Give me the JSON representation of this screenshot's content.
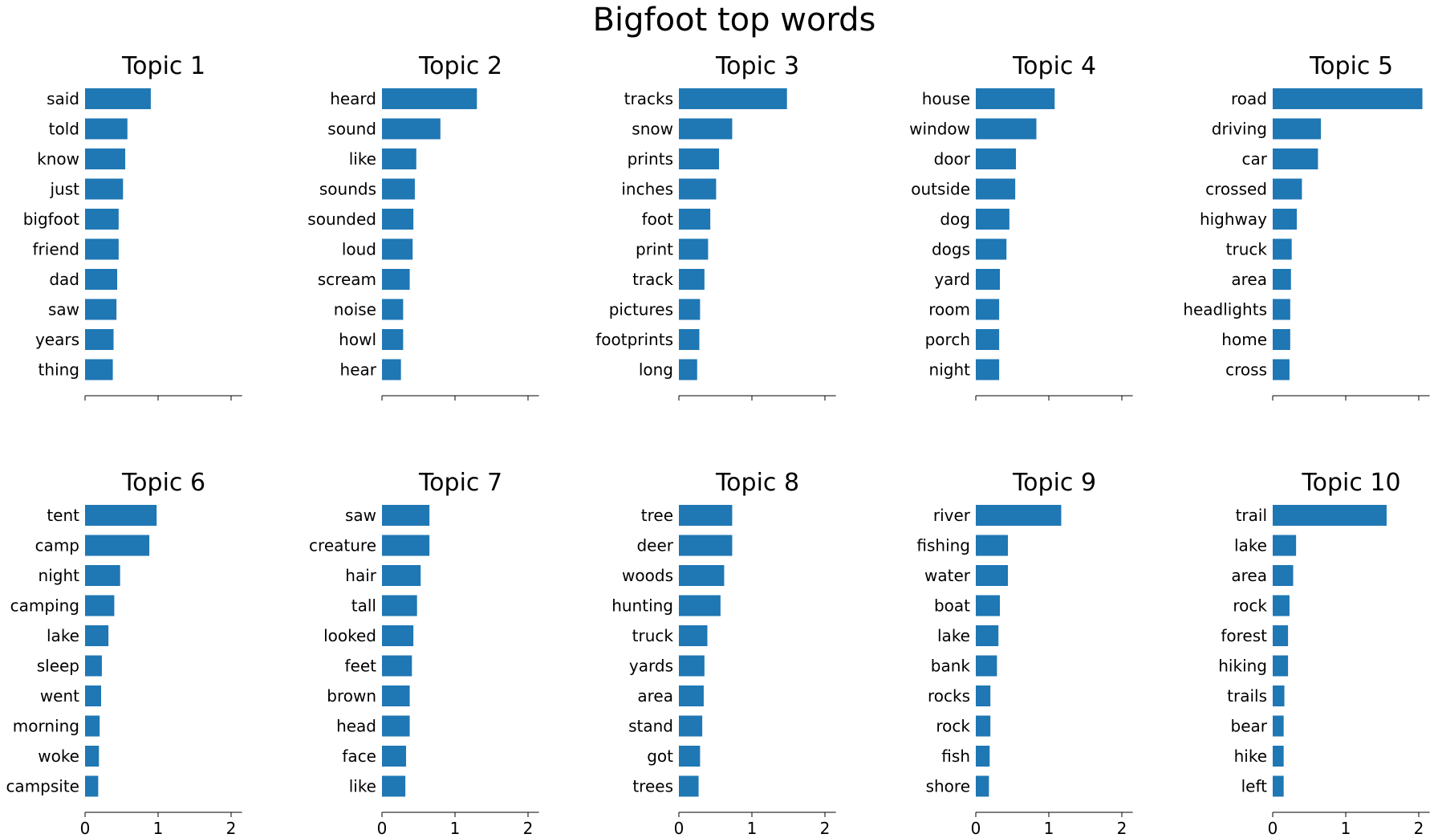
{
  "title": "Bigfoot top words",
  "chart_data": [
    {
      "type": "bar",
      "orientation": "horizontal",
      "title": "Topic 1",
      "categories": [
        "said",
        "told",
        "know",
        "just",
        "bigfoot",
        "friend",
        "dad",
        "saw",
        "years",
        "thing"
      ],
      "values": [
        0.9,
        0.58,
        0.55,
        0.52,
        0.46,
        0.46,
        0.44,
        0.43,
        0.39,
        0.38
      ],
      "xlim": [
        0,
        2.15
      ],
      "xticks": [
        "0",
        "1",
        "2"
      ],
      "show_tick_labels": false
    },
    {
      "type": "bar",
      "orientation": "horizontal",
      "title": "Topic 2",
      "categories": [
        "heard",
        "sound",
        "like",
        "sounds",
        "sounded",
        "loud",
        "scream",
        "noise",
        "howl",
        "hear"
      ],
      "values": [
        1.3,
        0.8,
        0.47,
        0.45,
        0.43,
        0.42,
        0.38,
        0.29,
        0.29,
        0.26
      ],
      "xlim": [
        0,
        2.15
      ],
      "xticks": [
        "0",
        "1",
        "2"
      ],
      "show_tick_labels": false
    },
    {
      "type": "bar",
      "orientation": "horizontal",
      "title": "Topic 3",
      "categories": [
        "tracks",
        "snow",
        "prints",
        "inches",
        "foot",
        "print",
        "track",
        "pictures",
        "footprints",
        "long"
      ],
      "values": [
        1.48,
        0.73,
        0.55,
        0.51,
        0.43,
        0.4,
        0.35,
        0.29,
        0.28,
        0.25
      ],
      "xlim": [
        0,
        2.15
      ],
      "xticks": [
        "0",
        "1",
        "2"
      ],
      "show_tick_labels": false
    },
    {
      "type": "bar",
      "orientation": "horizontal",
      "title": "Topic 4",
      "categories": [
        "house",
        "window",
        "door",
        "outside",
        "dog",
        "dogs",
        "yard",
        "room",
        "porch",
        "night"
      ],
      "values": [
        1.08,
        0.83,
        0.55,
        0.54,
        0.46,
        0.42,
        0.33,
        0.32,
        0.32,
        0.32
      ],
      "xlim": [
        0,
        2.15
      ],
      "xticks": [
        "0",
        "1",
        "2"
      ],
      "show_tick_labels": false
    },
    {
      "type": "bar",
      "orientation": "horizontal",
      "title": "Topic 5",
      "categories": [
        "road",
        "driving",
        "car",
        "crossed",
        "highway",
        "truck",
        "area",
        "headlights",
        "home",
        "cross"
      ],
      "values": [
        2.05,
        0.66,
        0.62,
        0.4,
        0.33,
        0.26,
        0.25,
        0.24,
        0.24,
        0.23
      ],
      "xlim": [
        0,
        2.15
      ],
      "xticks": [
        "0",
        "1",
        "2"
      ],
      "show_tick_labels": false
    },
    {
      "type": "bar",
      "orientation": "horizontal",
      "title": "Topic 6",
      "categories": [
        "tent",
        "camp",
        "night",
        "camping",
        "lake",
        "sleep",
        "went",
        "morning",
        "woke",
        "campsite"
      ],
      "values": [
        0.98,
        0.88,
        0.48,
        0.4,
        0.32,
        0.23,
        0.22,
        0.2,
        0.19,
        0.18
      ],
      "xlim": [
        0,
        2.15
      ],
      "xticks": [
        "0",
        "1",
        "2"
      ],
      "show_tick_labels": true
    },
    {
      "type": "bar",
      "orientation": "horizontal",
      "title": "Topic 7",
      "categories": [
        "saw",
        "creature",
        "hair",
        "tall",
        "looked",
        "feet",
        "brown",
        "head",
        "face",
        "like"
      ],
      "values": [
        0.65,
        0.65,
        0.53,
        0.48,
        0.43,
        0.41,
        0.38,
        0.38,
        0.33,
        0.32
      ],
      "xlim": [
        0,
        2.15
      ],
      "xticks": [
        "0",
        "1",
        "2"
      ],
      "show_tick_labels": true
    },
    {
      "type": "bar",
      "orientation": "horizontal",
      "title": "Topic 8",
      "categories": [
        "tree",
        "deer",
        "woods",
        "hunting",
        "truck",
        "yards",
        "area",
        "stand",
        "got",
        "trees"
      ],
      "values": [
        0.73,
        0.73,
        0.62,
        0.57,
        0.39,
        0.35,
        0.34,
        0.32,
        0.29,
        0.27
      ],
      "xlim": [
        0,
        2.15
      ],
      "xticks": [
        "0",
        "1",
        "2"
      ],
      "show_tick_labels": true
    },
    {
      "type": "bar",
      "orientation": "horizontal",
      "title": "Topic 9",
      "categories": [
        "river",
        "fishing",
        "water",
        "boat",
        "lake",
        "bank",
        "rocks",
        "rock",
        "fish",
        "shore"
      ],
      "values": [
        1.17,
        0.44,
        0.44,
        0.33,
        0.31,
        0.29,
        0.2,
        0.2,
        0.19,
        0.18
      ],
      "xlim": [
        0,
        2.15
      ],
      "xticks": [
        "0",
        "1",
        "2"
      ],
      "show_tick_labels": true
    },
    {
      "type": "bar",
      "orientation": "horizontal",
      "title": "Topic 10",
      "categories": [
        "trail",
        "lake",
        "area",
        "rock",
        "forest",
        "hiking",
        "trails",
        "bear",
        "hike",
        "left"
      ],
      "values": [
        1.56,
        0.32,
        0.28,
        0.23,
        0.21,
        0.21,
        0.16,
        0.15,
        0.15,
        0.15
      ],
      "xlim": [
        0,
        2.15
      ],
      "xticks": [
        "0",
        "1",
        "2"
      ],
      "show_tick_labels": true
    }
  ]
}
